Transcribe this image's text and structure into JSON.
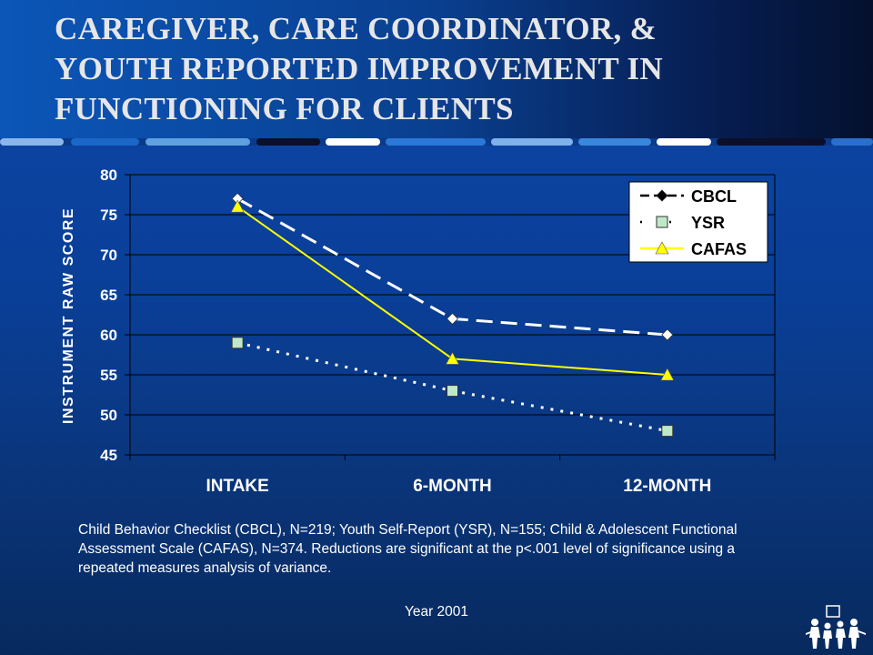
{
  "slide": {
    "title_lines": [
      "CAREGIVER, CARE COORDINATOR, &",
      "YOUTH REPORTED IMPROVEMENT IN",
      "FUNCTIONING FOR CLIENTS"
    ],
    "caption": "Child Behavior Checklist (CBCL), N=219; Youth Self-Report (YSR), N=155; Child & Adolescent Functional Assessment Scale (CAFAS), N=374.  Reductions are significant at the p<.001 level of significance using a repeated measures analysis of variance.",
    "year": "Year 2001",
    "logo_icon": "family-figures-logo-icon",
    "colors": {
      "background": "#0a3f98",
      "cbcl": "#ffffff",
      "ysr": "#ffffff",
      "cafas": "#ffff00",
      "ysr_marker": "#bfe8c8"
    }
  },
  "chart_data": {
    "type": "line",
    "ylabel": "INSTRUMENT RAW SCORE",
    "xlabel": "",
    "categories": [
      "INTAKE",
      "6-MONTH",
      "12-MONTH"
    ],
    "ylim": [
      45,
      80
    ],
    "yticks": [
      45,
      50,
      55,
      60,
      65,
      70,
      75,
      80
    ],
    "grid": true,
    "legend": "top-right",
    "series": [
      {
        "name": "CBCL",
        "values": [
          77,
          62,
          60
        ],
        "color": "#ffffff",
        "marker": "diamond",
        "dash": "dashed"
      },
      {
        "name": "YSR",
        "values": [
          59,
          53,
          48
        ],
        "color": "#ffffff",
        "marker": "square",
        "dash": "dotted"
      },
      {
        "name": "CAFAS",
        "values": [
          76,
          57,
          55
        ],
        "color": "#ffff00",
        "marker": "triangle",
        "dash": "solid"
      }
    ]
  }
}
